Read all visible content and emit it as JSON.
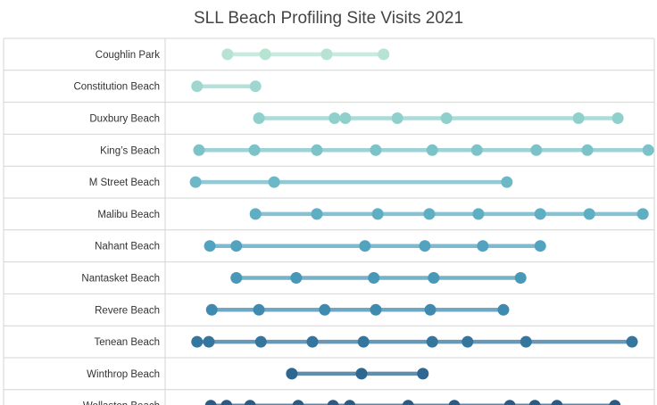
{
  "chart_data": {
    "type": "dot-timeline",
    "title": "SLL Beach Profiling Site Visits 2021",
    "xlabel": "",
    "ylabel": "",
    "xlim": [
      0,
      100
    ],
    "grid": true,
    "legend": "none",
    "series": [
      {
        "category": "Coughlin Park",
        "color": "#b7e3d3",
        "x": [
          12.7,
          20.4,
          32.9,
          44.5
        ]
      },
      {
        "category": "Constitution Beach",
        "color": "#9fd6cf",
        "x": [
          6.5,
          18.4
        ]
      },
      {
        "category": "Duxbury Beach",
        "color": "#8fd0cd",
        "x": [
          19.1,
          34.5,
          36.7,
          47.3,
          57.3,
          84.2,
          92.2
        ]
      },
      {
        "category": "King’s Beach",
        "color": "#7cc3c9",
        "x": [
          6.9,
          18.2,
          30.9,
          42.9,
          54.4,
          63.5,
          75.6,
          86.0,
          98.4
        ]
      },
      {
        "category": "M Street Beach",
        "color": "#6cb8c7",
        "x": [
          6.2,
          22.2,
          69.6
        ]
      },
      {
        "category": "Malibu Beach",
        "color": "#5eaec4",
        "x": [
          18.4,
          30.9,
          43.3,
          53.8,
          63.8,
          76.4,
          86.4,
          97.3
        ]
      },
      {
        "category": "Nahant Beach",
        "color": "#52a3bf",
        "x": [
          9.1,
          14.5,
          40.7,
          52.9,
          64.7,
          76.4
        ]
      },
      {
        "category": "Nantasket Beach",
        "color": "#4898b8",
        "x": [
          14.5,
          26.7,
          42.5,
          54.7,
          72.4
        ]
      },
      {
        "category": "Revere Beach",
        "color": "#3f8bb0",
        "x": [
          9.5,
          19.1,
          32.5,
          42.9,
          54.0,
          68.9
        ]
      },
      {
        "category": "Tenean Beach",
        "color": "#35769e",
        "x": [
          6.5,
          8.9,
          19.5,
          30.0,
          40.4,
          54.4,
          61.6,
          73.5,
          95.1
        ]
      },
      {
        "category": "Winthrop Beach",
        "color": "#2e6791",
        "x": [
          25.8,
          40.0,
          52.5
        ]
      },
      {
        "category": "Wollaston Beach",
        "color": "#2a5a86",
        "x": [
          9.3,
          12.5,
          17.3,
          27.1,
          34.2,
          37.6,
          49.5,
          58.9,
          70.2,
          75.3,
          79.8,
          91.6
        ]
      }
    ]
  }
}
